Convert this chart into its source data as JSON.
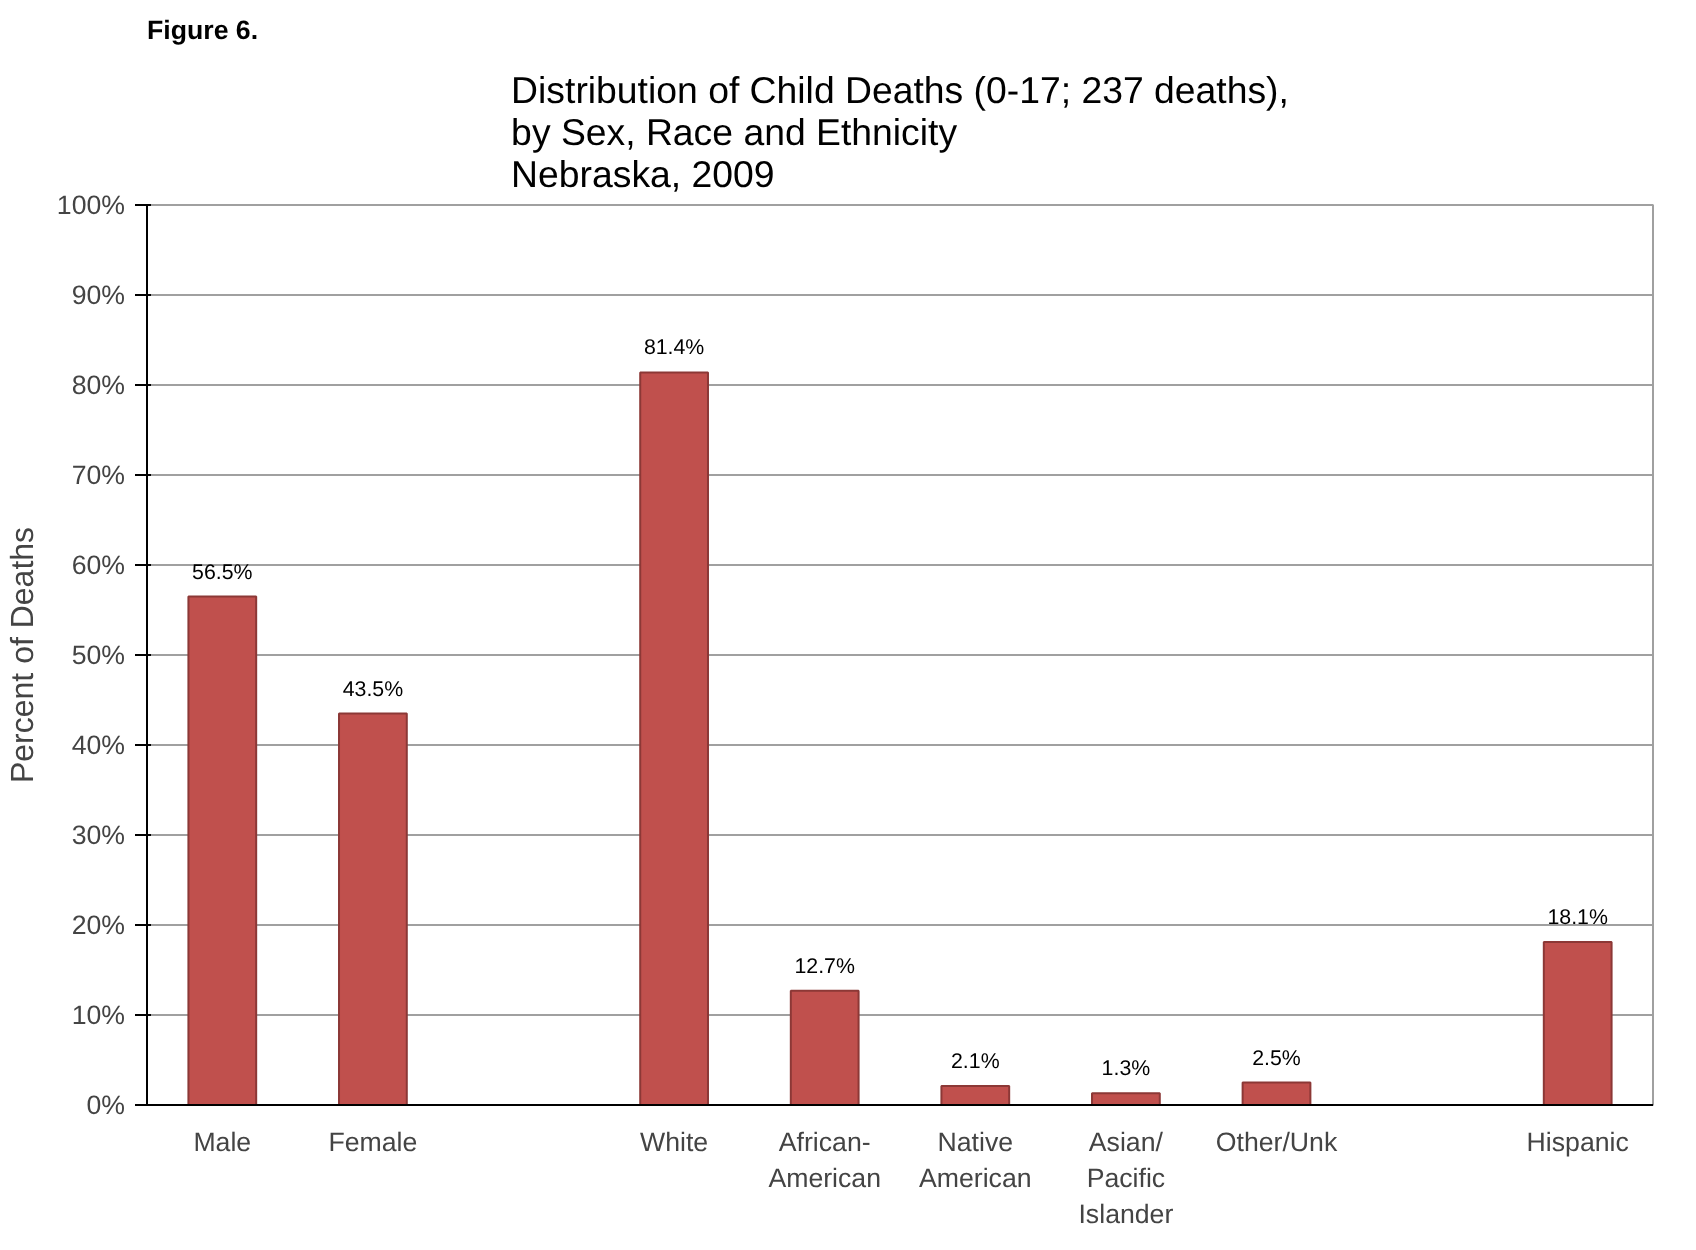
{
  "chart_data": {
    "type": "bar",
    "title": "Distribution of Child Deaths (0-17; 237 deaths),\nby Sex, Race and Ethnicity\nNebraska, 2009",
    "ylabel": "Percent of Deaths",
    "annotations": [
      "Figure 6."
    ],
    "categories": [
      "Male",
      "Female",
      null,
      "White",
      "African-\nAmerican",
      "Native\nAmerican",
      "Asian/\nPacific\nIslander",
      "Other/Unk",
      null,
      "Hispanic"
    ],
    "values": [
      56.5,
      43.5,
      null,
      81.4,
      12.7,
      2.1,
      1.3,
      2.5,
      null,
      18.1
    ],
    "value_labels": [
      "56.5%",
      "43.5%",
      null,
      "81.4%",
      "12.7%",
      "2.1%",
      "1.3%",
      "2.5%",
      null,
      "18.1%"
    ],
    "color": "#c0504d",
    "ylim": [
      0,
      100
    ],
    "yticks": [
      {
        "value": 0,
        "label": "0%"
      },
      {
        "value": 10,
        "label": "10%"
      },
      {
        "value": 20,
        "label": "20%"
      },
      {
        "value": 30,
        "label": "30%"
      },
      {
        "value": 40,
        "label": "40%"
      },
      {
        "value": 50,
        "label": "50%"
      },
      {
        "value": 60,
        "label": "60%"
      },
      {
        "value": 70,
        "label": "70%"
      },
      {
        "value": 80,
        "label": "80%"
      },
      {
        "value": 90,
        "label": "90%"
      },
      {
        "value": 100,
        "label": "100%"
      }
    ],
    "grid": "y"
  }
}
